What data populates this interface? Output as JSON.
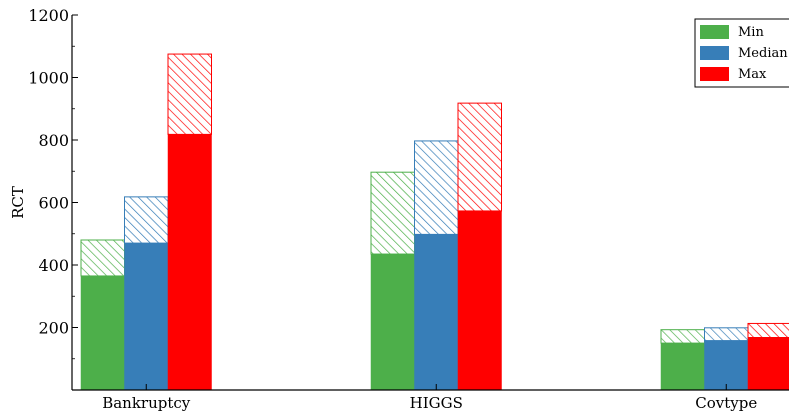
{
  "chart_data": {
    "type": "bar",
    "stacked_overlay": true,
    "categories": [
      "Bankruptcy",
      "HIGGS",
      "Covtype"
    ],
    "ylabel": "RCT",
    "xlabel": "",
    "ylim": [
      0,
      1200
    ],
    "yticks": [
      200,
      400,
      600,
      800,
      1000,
      1200
    ],
    "grid": false,
    "legend_position": "top-right",
    "series": [
      {
        "name": "Min",
        "color": "#4daf4a",
        "values": [
          365,
          435,
          150
        ],
        "hatched_top": [
          480,
          697,
          193
        ]
      },
      {
        "name": "Median",
        "color": "#377eb8",
        "values": [
          470,
          498,
          158
        ],
        "hatched_top": [
          618,
          797,
          199
        ]
      },
      {
        "name": "Max",
        "color": "#ff0000",
        "values": [
          818,
          573,
          168
        ],
        "hatched_top": [
          1075,
          918,
          213
        ]
      }
    ]
  }
}
